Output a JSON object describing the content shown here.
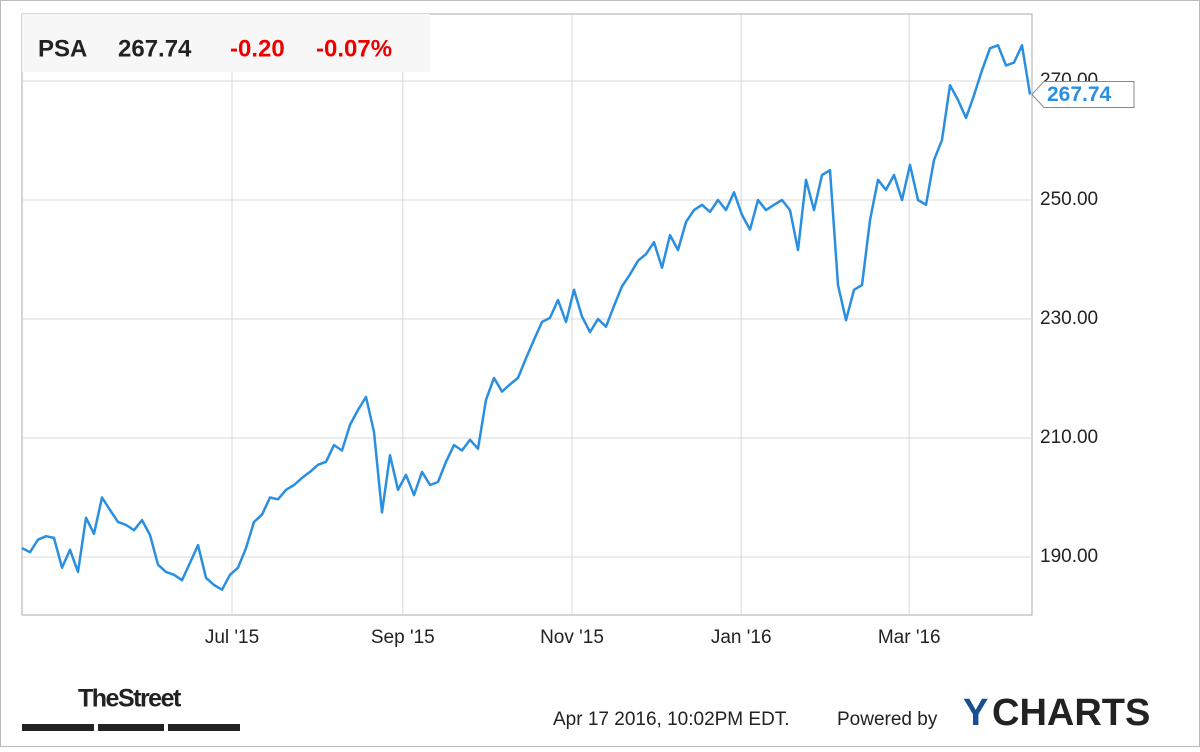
{
  "header": {
    "symbol": "PSA",
    "price": "267.74",
    "change": "-0.20",
    "change_pct": "-0.07%"
  },
  "chart_data": {
    "type": "line",
    "color": "#2a8fe0",
    "grid": true,
    "values": [
      191.5,
      190.8,
      192.9,
      193.5,
      193.2,
      188.2,
      191.2,
      187.5,
      196.6,
      193.9,
      200,
      197.9,
      195.9,
      195.4,
      194.5,
      196.2,
      193.7,
      188.7,
      187.5,
      187,
      186.1,
      189,
      192,
      186.5,
      185.3,
      184.5,
      187,
      188.2,
      191.5,
      195.9,
      197.1,
      200,
      199.7,
      201.3,
      202.1,
      203.3,
      204.3,
      205.5,
      206,
      208.8,
      207.9,
      212.2,
      214.7,
      216.9,
      211,
      197.5,
      207.1,
      201.3,
      203.8,
      200.4,
      204.3,
      202.1,
      202.6,
      206,
      208.8,
      207.9,
      209.7,
      208.2,
      216.4,
      220.1,
      217.8,
      219,
      220.1,
      223.4,
      226.5,
      229.5,
      230.2,
      233.2,
      229.5,
      234.9,
      230.4,
      227.8,
      230,
      228.7,
      232.2,
      235.5,
      237.5,
      239.8,
      240.9,
      242.9,
      238.6,
      244.1,
      241.6,
      246.3,
      248.3,
      249.2,
      248,
      250,
      248.3,
      251.3,
      247.5,
      245,
      250,
      248.3,
      249.2,
      250,
      248.3,
      241.6,
      253.4,
      248.3,
      254.2,
      255,
      235.7,
      229.8,
      234.9,
      235.7,
      246.6,
      253.4,
      251.7,
      254.2,
      250,
      255.9,
      250,
      249.2,
      256.7,
      260.1,
      269.3,
      266.8,
      263.8,
      267.6,
      271.8,
      275.5,
      276,
      272.6,
      273.1,
      276,
      267.74
    ],
    "xlim": [
      0,
      126
    ],
    "xticks": [
      {
        "value": 26.25,
        "label": "Jul '15"
      },
      {
        "value": 47.6,
        "label": "Sep '15"
      },
      {
        "value": 68.75,
        "label": "Nov '15"
      },
      {
        "value": 89.9,
        "label": "Jan '16"
      },
      {
        "value": 110.9,
        "label": "Mar '16"
      }
    ],
    "ylim": [
      180.25,
      281.26
    ],
    "yticks": [
      {
        "value": 190,
        "label": "190.00"
      },
      {
        "value": 210,
        "label": "210.00"
      },
      {
        "value": 230,
        "label": "230.00"
      },
      {
        "value": 250,
        "label": "250.00"
      },
      {
        "value": 270,
        "label": "270.00"
      }
    ]
  },
  "footer": {
    "timestamp": "Apr 17 2016, 10:02PM EDT.",
    "powered": "Powered by",
    "brand_y": "Y",
    "brand_rest": "CHARTS",
    "source_logo": "TheStreet"
  }
}
